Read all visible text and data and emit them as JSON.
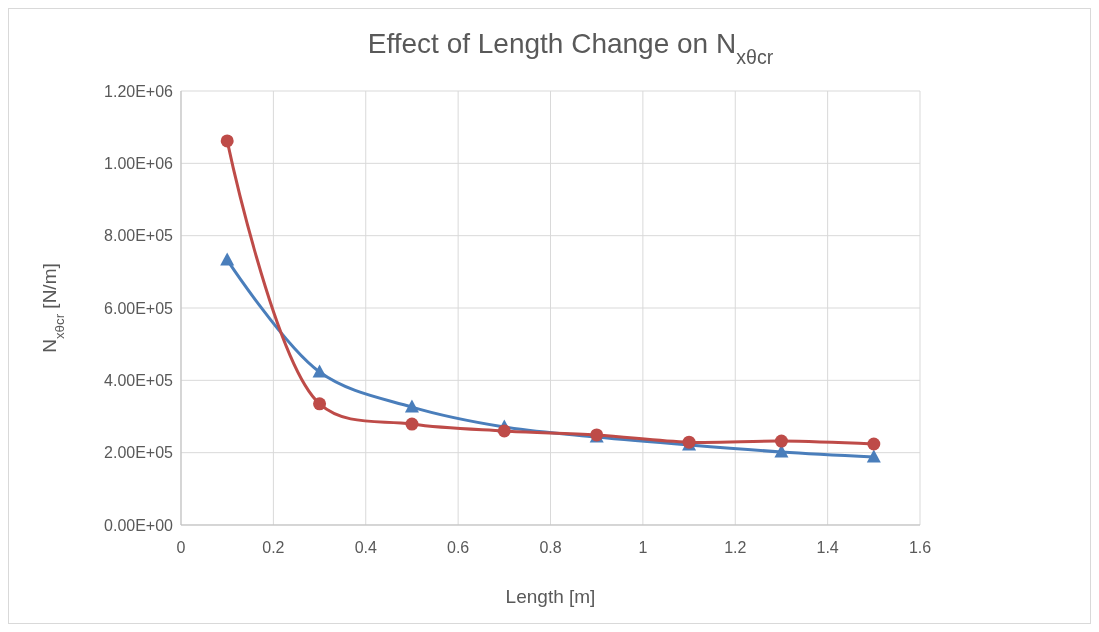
{
  "chart_data": {
    "type": "line",
    "title": "Effect of Length Change on N$_{xθcr}$",
    "xlabel": "Length [m]",
    "ylabel": "N$_{xθcr}$ [N/m]",
    "x": [
      0.1,
      0.3,
      0.5,
      0.7,
      0.9,
      1.1,
      1.3,
      1.5
    ],
    "series": [
      {
        "color": "#4a7ebb",
        "marker": "triangle",
        "values": [
          733000,
          423000,
          326000,
          271000,
          243000,
          221000,
          202000,
          188000
        ]
      },
      {
        "color": "#be4b48",
        "marker": "circle",
        "values": [
          1062000,
          335000,
          279000,
          260000,
          249000,
          229000,
          232000,
          224000
        ]
      }
    ],
    "xlim": [
      0,
      1.6
    ],
    "xticks": [
      0,
      0.2,
      0.4,
      0.6,
      0.8,
      1,
      1.2,
      1.4,
      1.6
    ],
    "ylim": [
      0,
      1200000
    ],
    "yticks": [
      {
        "value": 0,
        "label": "0.00E+00"
      },
      {
        "value": 200000,
        "label": "2.00E+05"
      },
      {
        "value": 400000,
        "label": "4.00E+05"
      },
      {
        "value": 600000,
        "label": "6.00E+05"
      },
      {
        "value": 800000,
        "label": "8.00E+05"
      },
      {
        "value": 1000000,
        "label": "1.00E+06"
      },
      {
        "value": 1200000,
        "label": "1.20E+06"
      }
    ],
    "grid": true,
    "line_style": "solid"
  }
}
